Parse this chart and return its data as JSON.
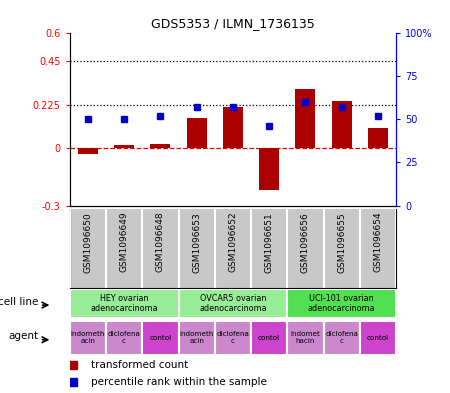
{
  "title": "GDS5353 / ILMN_1736135",
  "samples": [
    "GSM1096650",
    "GSM1096649",
    "GSM1096648",
    "GSM1096653",
    "GSM1096652",
    "GSM1096651",
    "GSM1096656",
    "GSM1096655",
    "GSM1096654"
  ],
  "transformed_counts": [
    -0.03,
    0.015,
    0.02,
    0.155,
    0.215,
    -0.22,
    0.305,
    0.245,
    0.105
  ],
  "percentile_ranks": [
    50,
    50,
    52,
    57,
    57,
    46,
    60,
    57,
    52
  ],
  "ylim_left": [
    -0.3,
    0.6
  ],
  "ylim_right": [
    0,
    100
  ],
  "yticks_left": [
    -0.3,
    0.0,
    0.225,
    0.45,
    0.6
  ],
  "ytick_labels_left": [
    "-0.3",
    "0",
    "0.225",
    "0.45",
    "0.6"
  ],
  "yticks_right": [
    0,
    25,
    50,
    75,
    100
  ],
  "ytick_labels_right": [
    "0",
    "25",
    "50",
    "75",
    "100%"
  ],
  "hlines": [
    0.225,
    0.45
  ],
  "cell_lines": [
    {
      "label": "HEY ovarian\nadenocarcinoma",
      "start": 0,
      "end": 3,
      "color": "#98EC98"
    },
    {
      "label": "OVCAR5 ovarian\nadenocarcinoma",
      "start": 3,
      "end": 6,
      "color": "#98EC98"
    },
    {
      "label": "UCI-101 ovarian\nadenocarcinoma",
      "start": 6,
      "end": 9,
      "color": "#50E050"
    }
  ],
  "agents": [
    {
      "label": "indometh\nacin",
      "start": 0,
      "end": 1,
      "color": "#CC88CC"
    },
    {
      "label": "diclofena\nc",
      "start": 1,
      "end": 2,
      "color": "#CC88CC"
    },
    {
      "label": "contol",
      "start": 2,
      "end": 3,
      "color": "#CC44CC"
    },
    {
      "label": "indometh\nacin",
      "start": 3,
      "end": 4,
      "color": "#CC88CC"
    },
    {
      "label": "diclofena\nc",
      "start": 4,
      "end": 5,
      "color": "#CC88CC"
    },
    {
      "label": "contol",
      "start": 5,
      "end": 6,
      "color": "#CC44CC"
    },
    {
      "label": "indomet\nhacin",
      "start": 6,
      "end": 7,
      "color": "#CC88CC"
    },
    {
      "label": "diclofena\nc",
      "start": 7,
      "end": 8,
      "color": "#CC88CC"
    },
    {
      "label": "contol",
      "start": 8,
      "end": 9,
      "color": "#CC44CC"
    }
  ],
  "bar_color": "#AA0000",
  "square_color": "#0000CC",
  "bar_width": 0.55,
  "background_color": "#ffffff",
  "zero_line_color": "#DD0000",
  "sample_bg_color": "#C8C8C8"
}
